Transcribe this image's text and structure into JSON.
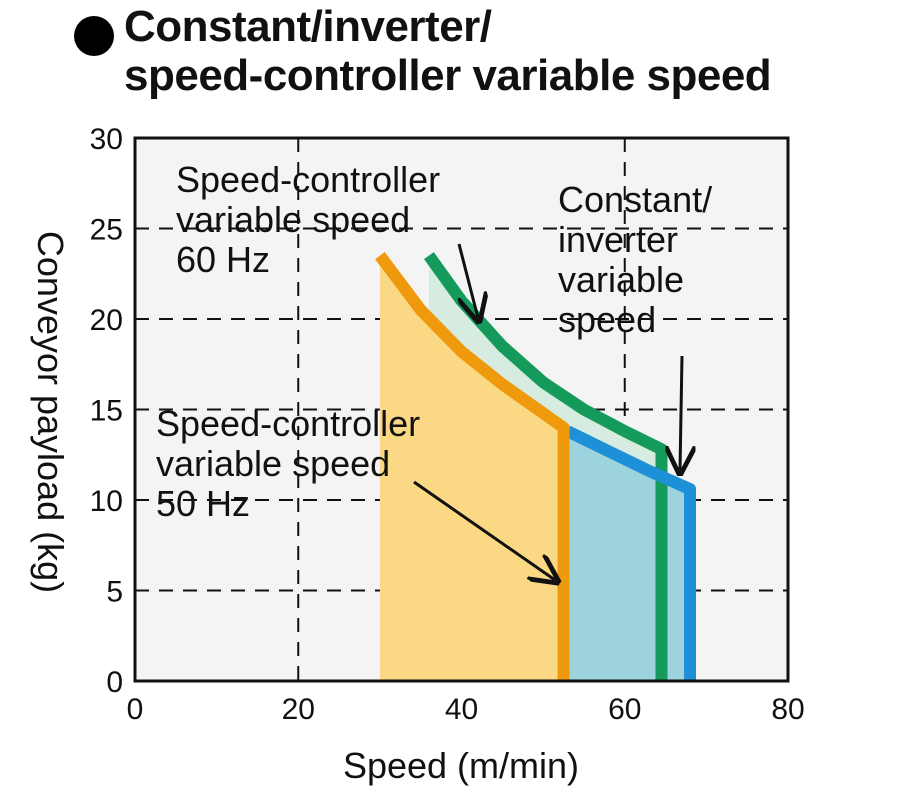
{
  "title": {
    "line1": "Constant/inverter/",
    "line2": "speed-controller variable speed"
  },
  "chart_data": {
    "type": "area",
    "title": "Constant/inverter/ speed-controller variable speed",
    "xlabel": "Speed (m/min)",
    "ylabel": "Conveyor payload (kg)",
    "xlim": [
      0,
      80
    ],
    "ylim": [
      0,
      30
    ],
    "xticks": [
      0,
      20,
      40,
      60,
      80
    ],
    "yticks": [
      0,
      5,
      10,
      15,
      20,
      25,
      30
    ],
    "grid": "dashed",
    "series": [
      {
        "label_lines": [
          "Speed-controller",
          "variable speed",
          "60 Hz"
        ],
        "color": "#149a5a",
        "fill": "#d6ece0",
        "x": [
          36,
          40,
          45,
          50,
          55,
          60,
          64.5,
          64.5
        ],
        "y": [
          23.5,
          21,
          18.5,
          16.5,
          15,
          13.8,
          12.8,
          0
        ]
      },
      {
        "label_lines": [
          "Constant/",
          "inverter",
          "variable",
          "speed"
        ],
        "color": "#1e90d8",
        "fill": "#9dd3dc",
        "x": [
          53,
          58,
          63,
          68,
          68
        ],
        "y": [
          13.8,
          12.7,
          11.6,
          10.6,
          0
        ]
      },
      {
        "label_lines": [
          "Speed-controller",
          "variable speed",
          "50 Hz"
        ],
        "color": "#ee9a0c",
        "fill": "#fbd984",
        "x": [
          30,
          35,
          40,
          45,
          50,
          52.5,
          52.5
        ],
        "y": [
          23.5,
          20.5,
          18.2,
          16.4,
          14.8,
          14.0,
          0
        ]
      }
    ]
  }
}
